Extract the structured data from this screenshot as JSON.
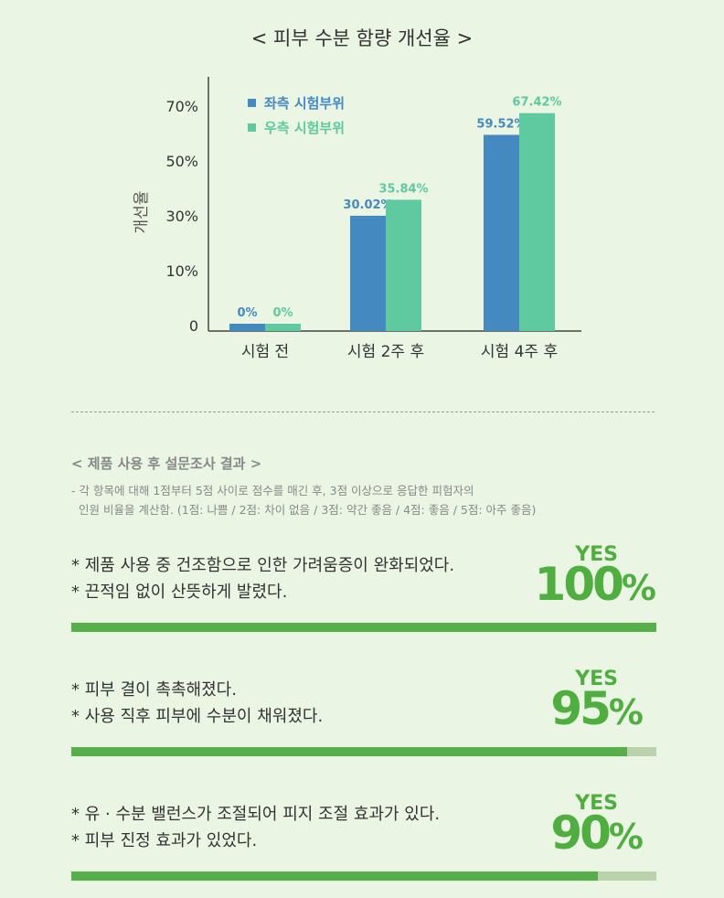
{
  "chart_data": {
    "type": "bar",
    "title": "< 피부 수분 함량 개선율 >",
    "ylabel": "개선율",
    "categories": [
      "시험 전",
      "시험 2주 후",
      "시험 4주 후"
    ],
    "series": [
      {
        "name": "좌측 시험부위",
        "values": [
          0,
          30.02,
          59.52
        ],
        "labels": [
          "0%",
          "30.02%",
          "59.52%"
        ],
        "color": "#4589c1"
      },
      {
        "name": "우측 시험부위",
        "values": [
          0,
          35.84,
          67.42
        ],
        "labels": [
          "0%",
          "35.84%",
          "67.42%"
        ],
        "color": "#5fc9a0"
      }
    ],
    "yticks": [
      {
        "value": 0,
        "label": "0"
      },
      {
        "value": 10,
        "label": "10%"
      },
      {
        "value": 30,
        "label": "30%"
      },
      {
        "value": 50,
        "label": "50%"
      },
      {
        "value": 70,
        "label": "70%"
      }
    ],
    "ylim": [
      0,
      80
    ],
    "legend_position": "top-left",
    "grid": false
  },
  "survey": {
    "title": "< 제품 사용 후 설문조사 결과 >",
    "note_line1": "- 각 항목에 대해 1점부터 5점 사이로 점수를 매긴 후, 3점 이상으로 응답한 피험자의",
    "note_line2": "인원 비율을 계산함.  (1점: 나쁨 / 2점: 차이 없음 / 3점: 약간 좋음 / 4점: 좋음 / 5점: 아주 좋음)",
    "results": [
      {
        "line1": "* 제품 사용 중 건조함으로 인한 가려움증이 완화되었다.",
        "line2": "* 끈적임 없이 산뜻하게 발렸다.",
        "yes": "YES",
        "percent": "100",
        "sign": "%",
        "value": 1.0
      },
      {
        "line1": "* 피부 결이 촉촉해졌다.",
        "line2": "* 사용 직후 피부에 수분이 채워졌다.",
        "yes": "YES",
        "percent": "95",
        "sign": "%",
        "value": 0.95
      },
      {
        "line1": "* 유 · 수분 밸런스가 조절되어 피지 조절 효과가 있다.",
        "line2": "* 피부 진정 효과가 있었다.",
        "yes": "YES",
        "percent": "90",
        "sign": "%",
        "value": 0.9
      }
    ],
    "accent_color": "#55b049",
    "track_color": "#bcd2ad"
  }
}
